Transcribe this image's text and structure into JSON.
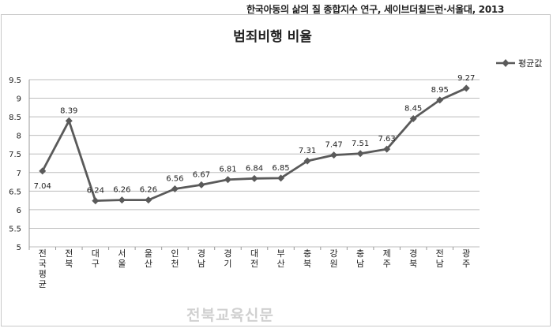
{
  "source_note": "한국아동의 삶의 질 종합지수 연구, 세이브더칠드런·서울대, 2013",
  "watermark": "전북교육신문",
  "colors": {
    "series": "#5a5a5a",
    "grid": "#bdbdbd",
    "text": "#222222"
  },
  "chart_data": {
    "type": "line",
    "title": "범죄비행 비율",
    "xlabel": "",
    "ylabel": "",
    "ylim": [
      5,
      9.5
    ],
    "yticks": [
      "5",
      "5.5",
      "6",
      "6.5",
      "7",
      "7.5",
      "8",
      "8.5",
      "9",
      "9.5"
    ],
    "grid": true,
    "legend_position": "top-right",
    "categories": [
      "전국평균",
      "전북",
      "대구",
      "서울",
      "울산",
      "인천",
      "경남",
      "경기",
      "대전",
      "부산",
      "충북",
      "강원",
      "충남",
      "제주",
      "경북",
      "전남",
      "광주"
    ],
    "series": [
      {
        "name": "평균값",
        "marker": "diamond",
        "values": [
          7.04,
          8.39,
          6.24,
          6.26,
          6.26,
          6.56,
          6.67,
          6.81,
          6.84,
          6.85,
          7.31,
          7.47,
          7.51,
          7.63,
          8.45,
          8.95,
          9.27
        ],
        "labels": [
          "7.04",
          "8.39",
          "6.24",
          "6.26",
          "6.26",
          "6.56",
          "6.67",
          "6.81",
          "6.84",
          "6.85",
          "7.31",
          "7.47",
          "7.51",
          "7.63",
          "8.45",
          "8.95",
          "9.27"
        ]
      }
    ]
  }
}
